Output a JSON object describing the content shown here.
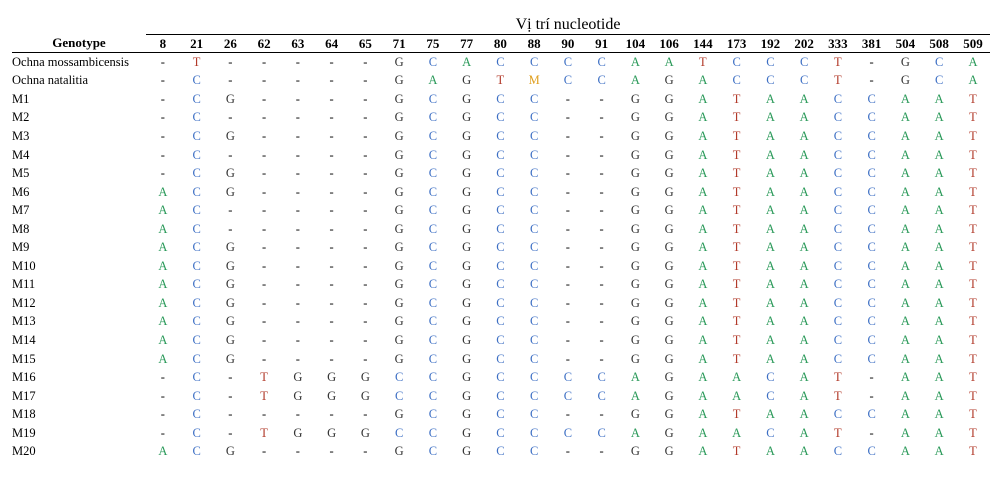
{
  "table": {
    "title": "Vị trí nucleotide",
    "genotype_header": "Genotype",
    "positions": [
      "8",
      "21",
      "26",
      "62",
      "63",
      "64",
      "65",
      "71",
      "75",
      "77",
      "80",
      "88",
      "90",
      "91",
      "104",
      "106",
      "144",
      "173",
      "192",
      "202",
      "333",
      "381",
      "504",
      "508",
      "509"
    ],
    "rows": [
      {
        "name": "Ochna mossambicensis",
        "values": [
          "-",
          "T",
          "-",
          "-",
          "-",
          "-",
          "-",
          "G",
          "C",
          "A",
          "C",
          "C",
          "C",
          "C",
          "A",
          "A",
          "T",
          "C",
          "C",
          "C",
          "T",
          "-",
          "G",
          "C",
          "A"
        ]
      },
      {
        "name": "Ochna natalitia",
        "values": [
          "-",
          "C",
          "-",
          "-",
          "-",
          "-",
          "-",
          "G",
          "A",
          "G",
          "T",
          "M",
          "C",
          "C",
          "A",
          "G",
          "A",
          "C",
          "C",
          "C",
          "T",
          "-",
          "G",
          "C",
          "A"
        ]
      },
      {
        "name": "M1",
        "values": [
          "-",
          "C",
          "G",
          "-",
          "-",
          "-",
          "-",
          "G",
          "C",
          "G",
          "C",
          "C",
          "-",
          "-",
          "G",
          "G",
          "A",
          "T",
          "A",
          "A",
          "C",
          "C",
          "A",
          "A",
          "T"
        ]
      },
      {
        "name": "M2",
        "values": [
          "-",
          "C",
          "-",
          "-",
          "-",
          "-",
          "-",
          "G",
          "C",
          "G",
          "C",
          "C",
          "-",
          "-",
          "G",
          "G",
          "A",
          "T",
          "A",
          "A",
          "C",
          "C",
          "A",
          "A",
          "T"
        ]
      },
      {
        "name": "M3",
        "values": [
          "-",
          "C",
          "G",
          "-",
          "-",
          "-",
          "-",
          "G",
          "C",
          "G",
          "C",
          "C",
          "-",
          "-",
          "G",
          "G",
          "A",
          "T",
          "A",
          "A",
          "C",
          "C",
          "A",
          "A",
          "T"
        ]
      },
      {
        "name": "M4",
        "values": [
          "-",
          "C",
          "-",
          "-",
          "-",
          "-",
          "-",
          "G",
          "C",
          "G",
          "C",
          "C",
          "-",
          "-",
          "G",
          "G",
          "A",
          "T",
          "A",
          "A",
          "C",
          "C",
          "A",
          "A",
          "T"
        ]
      },
      {
        "name": "M5",
        "values": [
          "-",
          "C",
          "G",
          "-",
          "-",
          "-",
          "-",
          "G",
          "C",
          "G",
          "C",
          "C",
          "-",
          "-",
          "G",
          "G",
          "A",
          "T",
          "A",
          "A",
          "C",
          "C",
          "A",
          "A",
          "T"
        ]
      },
      {
        "name": "M6",
        "values": [
          "A",
          "C",
          "G",
          "-",
          "-",
          "-",
          "-",
          "G",
          "C",
          "G",
          "C",
          "C",
          "-",
          "-",
          "G",
          "G",
          "A",
          "T",
          "A",
          "A",
          "C",
          "C",
          "A",
          "A",
          "T"
        ]
      },
      {
        "name": "M7",
        "values": [
          "A",
          "C",
          "-",
          "-",
          "-",
          "-",
          "-",
          "G",
          "C",
          "G",
          "C",
          "C",
          "-",
          "-",
          "G",
          "G",
          "A",
          "T",
          "A",
          "A",
          "C",
          "C",
          "A",
          "A",
          "T"
        ]
      },
      {
        "name": "M8",
        "values": [
          "A",
          "C",
          "-",
          "-",
          "-",
          "-",
          "-",
          "G",
          "C",
          "G",
          "C",
          "C",
          "-",
          "-",
          "G",
          "G",
          "A",
          "T",
          "A",
          "A",
          "C",
          "C",
          "A",
          "A",
          "T"
        ]
      },
      {
        "name": "M9",
        "values": [
          "A",
          "C",
          "G",
          "-",
          "-",
          "-",
          "-",
          "G",
          "C",
          "G",
          "C",
          "C",
          "-",
          "-",
          "G",
          "G",
          "A",
          "T",
          "A",
          "A",
          "C",
          "C",
          "A",
          "A",
          "T"
        ]
      },
      {
        "name": "M10",
        "values": [
          "A",
          "C",
          "G",
          "-",
          "-",
          "-",
          "-",
          "G",
          "C",
          "G",
          "C",
          "C",
          "-",
          "-",
          "G",
          "G",
          "A",
          "T",
          "A",
          "A",
          "C",
          "C",
          "A",
          "A",
          "T"
        ]
      },
      {
        "name": "M11",
        "values": [
          "A",
          "C",
          "G",
          "-",
          "-",
          "-",
          "-",
          "G",
          "C",
          "G",
          "C",
          "C",
          "-",
          "-",
          "G",
          "G",
          "A",
          "T",
          "A",
          "A",
          "C",
          "C",
          "A",
          "A",
          "T"
        ]
      },
      {
        "name": "M12",
        "values": [
          "A",
          "C",
          "G",
          "-",
          "-",
          "-",
          "-",
          "G",
          "C",
          "G",
          "C",
          "C",
          "-",
          "-",
          "G",
          "G",
          "A",
          "T",
          "A",
          "A",
          "C",
          "C",
          "A",
          "A",
          "T"
        ]
      },
      {
        "name": "M13",
        "values": [
          "A",
          "C",
          "G",
          "-",
          "-",
          "-",
          "-",
          "G",
          "C",
          "G",
          "C",
          "C",
          "-",
          "-",
          "G",
          "G",
          "A",
          "T",
          "A",
          "A",
          "C",
          "C",
          "A",
          "A",
          "T"
        ]
      },
      {
        "name": "M14",
        "values": [
          "A",
          "C",
          "G",
          "-",
          "-",
          "-",
          "-",
          "G",
          "C",
          "G",
          "C",
          "C",
          "-",
          "-",
          "G",
          "G",
          "A",
          "T",
          "A",
          "A",
          "C",
          "C",
          "A",
          "A",
          "T"
        ]
      },
      {
        "name": "M15",
        "values": [
          "A",
          "C",
          "G",
          "-",
          "-",
          "-",
          "-",
          "G",
          "C",
          "G",
          "C",
          "C",
          "-",
          "-",
          "G",
          "G",
          "A",
          "T",
          "A",
          "A",
          "C",
          "C",
          "A",
          "A",
          "T"
        ]
      },
      {
        "name": "M16",
        "values": [
          "-",
          "C",
          "-",
          "T",
          "G",
          "G",
          "G",
          "C",
          "C",
          "G",
          "C",
          "C",
          "C",
          "C",
          "A",
          "G",
          "A",
          "A",
          "C",
          "A",
          "T",
          "-",
          "A",
          "A",
          "T"
        ]
      },
      {
        "name": "M17",
        "values": [
          "-",
          "C",
          "-",
          "T",
          "G",
          "G",
          "G",
          "C",
          "C",
          "G",
          "C",
          "C",
          "C",
          "C",
          "A",
          "G",
          "A",
          "A",
          "C",
          "A",
          "T",
          "-",
          "A",
          "A",
          "T"
        ]
      },
      {
        "name": "M18",
        "values": [
          "-",
          "C",
          "-",
          "-",
          "-",
          "-",
          "-",
          "G",
          "C",
          "G",
          "C",
          "C",
          "-",
          "-",
          "G",
          "G",
          "A",
          "T",
          "A",
          "A",
          "C",
          "C",
          "A",
          "A",
          "T"
        ]
      },
      {
        "name": "M19",
        "values": [
          "-",
          "C",
          "-",
          "T",
          "G",
          "G",
          "G",
          "C",
          "C",
          "G",
          "C",
          "C",
          "C",
          "C",
          "A",
          "G",
          "A",
          "A",
          "C",
          "A",
          "T",
          "-",
          "A",
          "A",
          "T"
        ]
      },
      {
        "name": "M20",
        "values": [
          "A",
          "C",
          "G",
          "-",
          "-",
          "-",
          "-",
          "G",
          "C",
          "G",
          "C",
          "C",
          "-",
          "-",
          "G",
          "G",
          "A",
          "T",
          "A",
          "A",
          "C",
          "C",
          "A",
          "A",
          "T"
        ]
      }
    ]
  },
  "nucleotide_colors": {
    "A": "#2b9a5a",
    "C": "#3d6fc4",
    "G": "#333333",
    "T": "#b23a2a",
    "M": "#e0a020",
    "-": "#000000"
  }
}
